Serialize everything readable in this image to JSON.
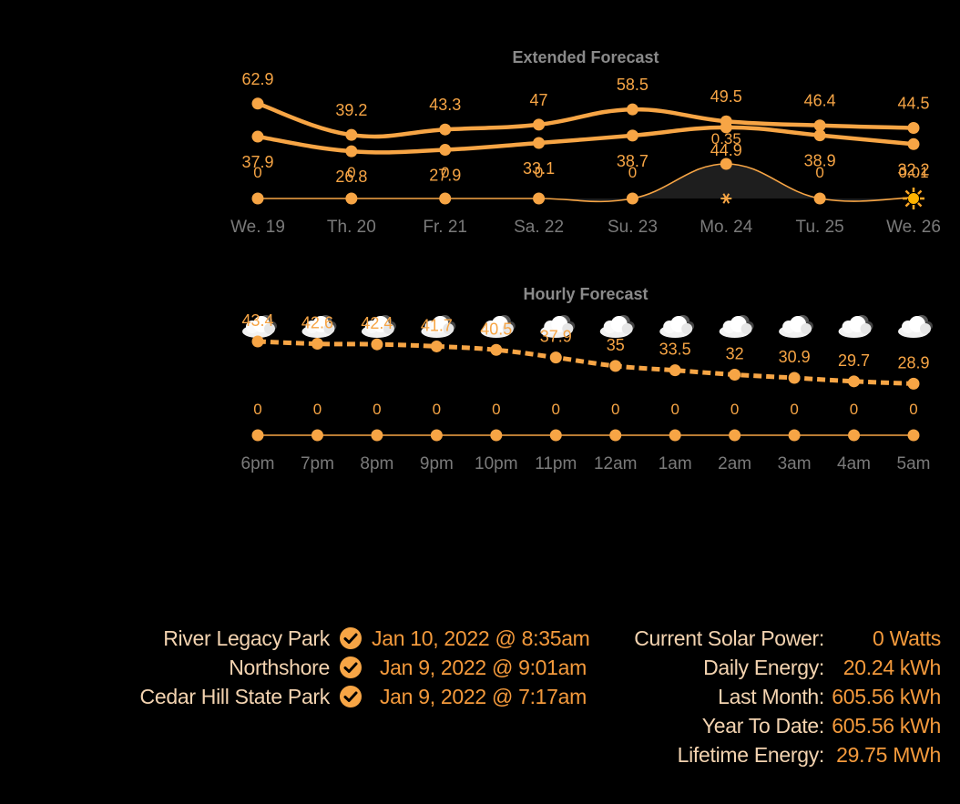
{
  "chart_data": [
    {
      "type": "line",
      "title": "Extended Forecast",
      "categories": [
        "We. 19",
        "Th. 20",
        "Fr. 21",
        "Sa. 22",
        "Su. 23",
        "Mo. 24",
        "Tu. 25",
        "We. 26"
      ],
      "series": [
        {
          "name": "",
          "values": [
            62.9,
            39.2,
            43.3,
            47,
            58.5,
            49.5,
            46.4,
            44.5
          ]
        },
        {
          "name": "",
          "values": [
            37.9,
            26.8,
            27.9,
            33.1,
            38.7,
            44.9,
            38.9,
            32.2
          ]
        },
        {
          "name": "",
          "values": [
            0,
            0,
            0,
            0,
            0,
            0.35,
            0,
            0.01
          ]
        }
      ],
      "upper_labels": [
        "62.9",
        "39.2",
        "43.3",
        "47",
        "58.5",
        "49.5",
        "46.4",
        "44.5"
      ],
      "lower_labels": [
        "37.9",
        "26.8",
        "27.9",
        "33.1",
        "38.7",
        "44.9",
        "38.9",
        "32.2"
      ],
      "precip_labels": [
        "0",
        "0",
        "0",
        "0",
        "0",
        "0.35",
        "0",
        "0.01"
      ]
    },
    {
      "type": "line",
      "title": "Hourly Forecast",
      "categories": [
        "6pm",
        "7pm",
        "8pm",
        "9pm",
        "10pm",
        "11pm",
        "12am",
        "1am",
        "2am",
        "3am",
        "4am",
        "5am"
      ],
      "series": [
        {
          "name": "",
          "values": [
            43.4,
            42.6,
            42.4,
            41.7,
            40.5,
            37.9,
            35,
            33.5,
            32,
            30.9,
            29.7,
            28.9
          ]
        },
        {
          "name": "",
          "values": [
            0,
            0,
            0,
            0,
            0,
            0,
            0,
            0,
            0,
            0,
            0,
            0
          ]
        }
      ],
      "temp_labels": [
        "43.4",
        "42.6",
        "42.4",
        "41.7",
        "40.5",
        "37.9",
        "35",
        "33.5",
        "32",
        "30.9",
        "29.7",
        "28.9"
      ],
      "precip_labels": [
        "0",
        "0",
        "0",
        "0",
        "0",
        "0",
        "0",
        "0",
        "0",
        "0",
        "0",
        "0"
      ]
    }
  ],
  "colors": {
    "accent": "#f7a545",
    "title": "#8a8a8a",
    "tick": "#7a7a7a",
    "label": "#f3d3b0",
    "value": "#f49a3c"
  },
  "icons": {
    "extended": "snow-icon",
    "extended_last": "sun-icon",
    "hourly": "cloud-icon",
    "check": "check-circle-icon"
  },
  "parks": [
    {
      "name": "River Legacy Park",
      "date": "Jan 10, 2022 @ 8:35am"
    },
    {
      "name": "Northshore",
      "date": "Jan 9, 2022 @ 9:01am"
    },
    {
      "name": "Cedar Hill State Park",
      "date": "Jan 9, 2022 @ 7:17am"
    }
  ],
  "solar": [
    {
      "label": "Current Solar Power:",
      "value": "0 Watts"
    },
    {
      "label": "Daily Energy:",
      "value": "20.24 kWh"
    },
    {
      "label": "Last Month:",
      "value": "605.56 kWh"
    },
    {
      "label": "Year To Date:",
      "value": "605.56 kWh"
    },
    {
      "label": "Lifetime Energy:",
      "value": "29.75 MWh"
    }
  ]
}
